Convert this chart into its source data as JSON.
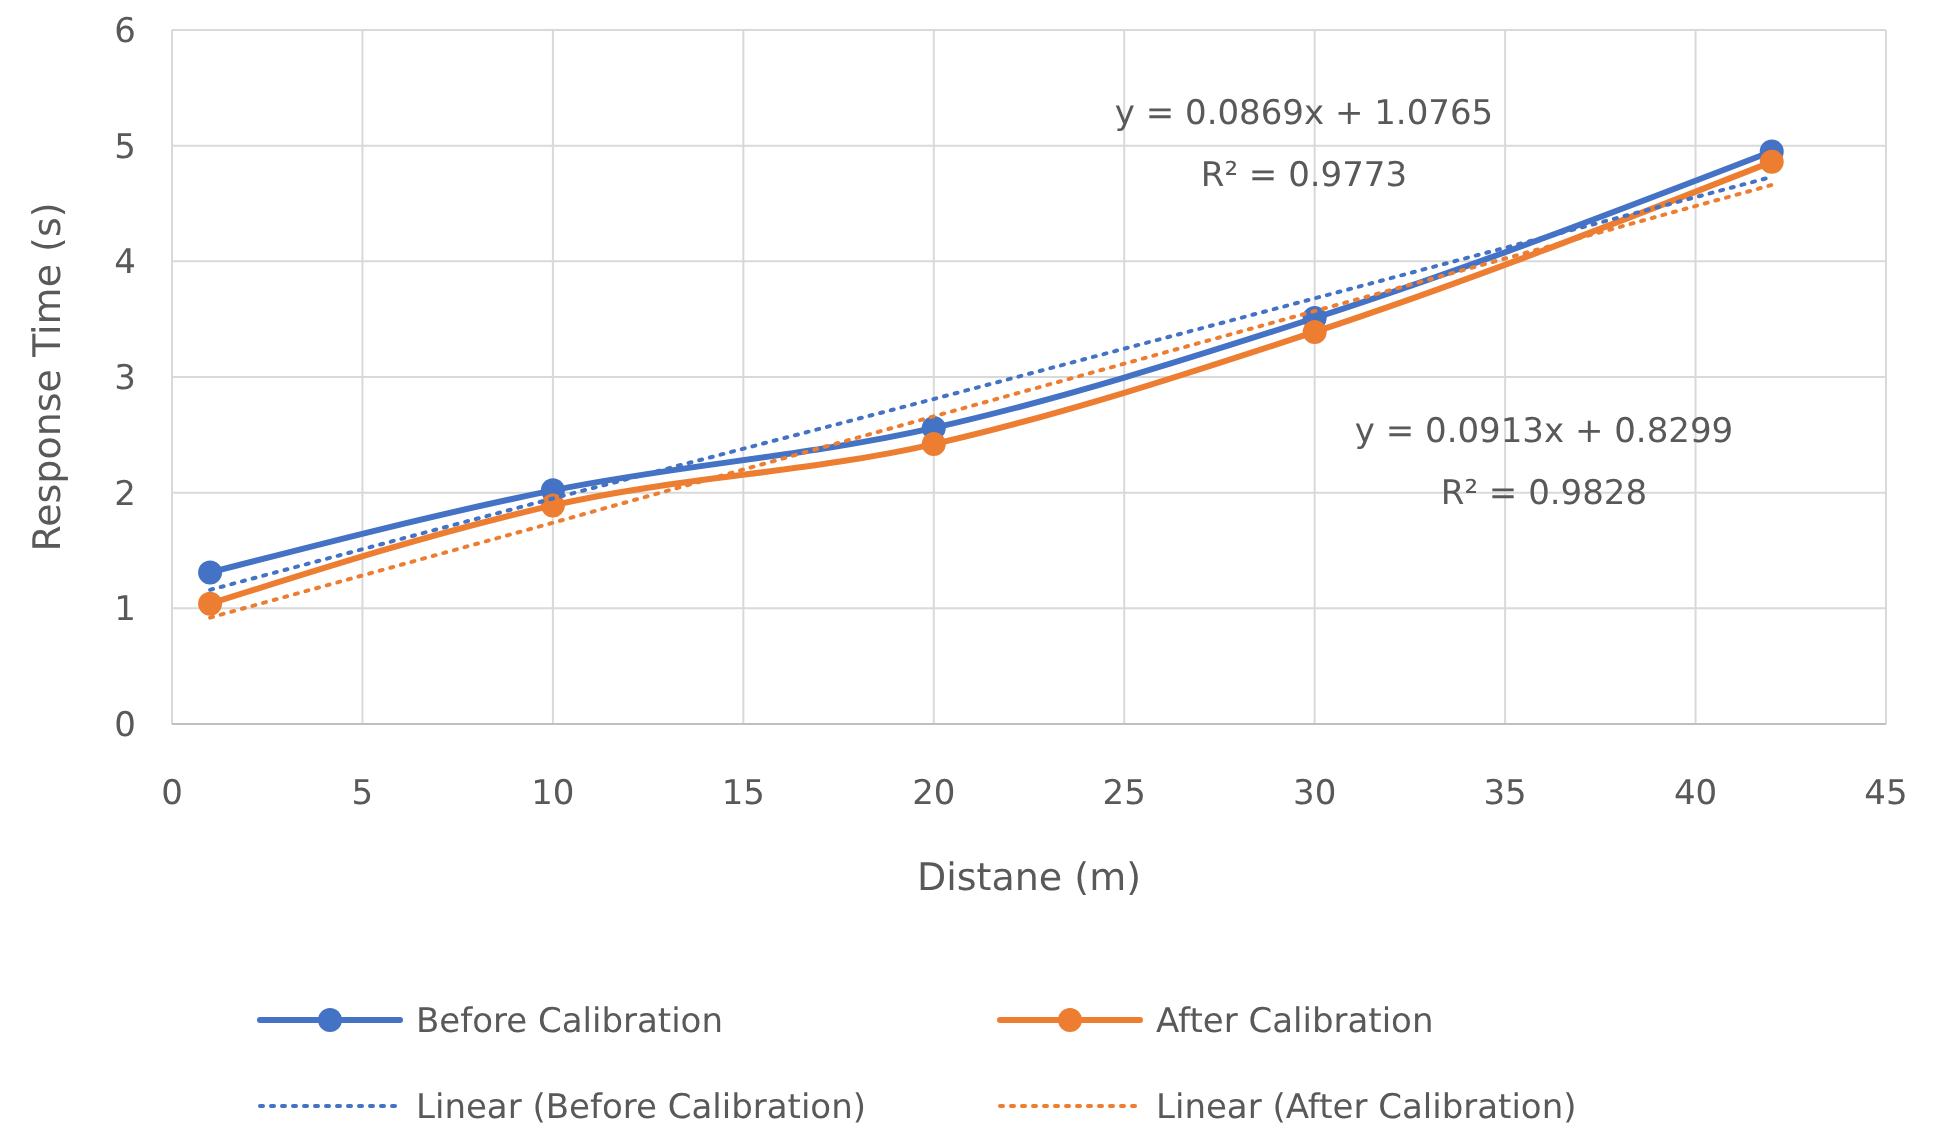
{
  "chart_data": {
    "type": "line",
    "xlabel": "Distane (m)",
    "ylabel": "Response Time (s)",
    "x": [
      1,
      10,
      20,
      30,
      42
    ],
    "series": [
      {
        "name": "Before Calibration",
        "color": "#4472c4",
        "values": [
          1.31,
          2.02,
          2.56,
          3.51,
          4.95
        ],
        "marker": "circle",
        "line_style": "solid"
      },
      {
        "name": "After Calibration",
        "color": "#ed7d31",
        "values": [
          1.04,
          1.89,
          2.42,
          3.39,
          4.86
        ],
        "marker": "circle",
        "line_style": "solid"
      },
      {
        "name": "Linear (Before Calibration)",
        "color": "#4472c4",
        "type": "line",
        "x": [
          1,
          10,
          20,
          30,
          42
        ],
        "values": [
          1.16,
          1.95,
          2.81,
          3.68,
          4.73
        ],
        "marker": "none",
        "line_style": "dotted"
      },
      {
        "name": "Linear (After Calibration)",
        "color": "#ed7d31",
        "type": "line",
        "x": [
          1,
          10,
          20,
          30,
          42
        ],
        "values": [
          0.92,
          1.74,
          2.66,
          3.57,
          4.66
        ],
        "marker": "none",
        "line_style": "dotted"
      }
    ],
    "xlim": [
      0,
      45
    ],
    "xticks": [
      0,
      5,
      10,
      15,
      20,
      25,
      30,
      35,
      40,
      45
    ],
    "ylim": [
      0,
      6
    ],
    "yticks": [
      0,
      1,
      2,
      3,
      4,
      5,
      6
    ],
    "grid": true,
    "legend": "bottom",
    "annotations": [
      "y = 0.0869x + 1.0765",
      "R² = 0.9773",
      "y = 0.0913x + 0.8299",
      "R² = 0.9828"
    ]
  }
}
